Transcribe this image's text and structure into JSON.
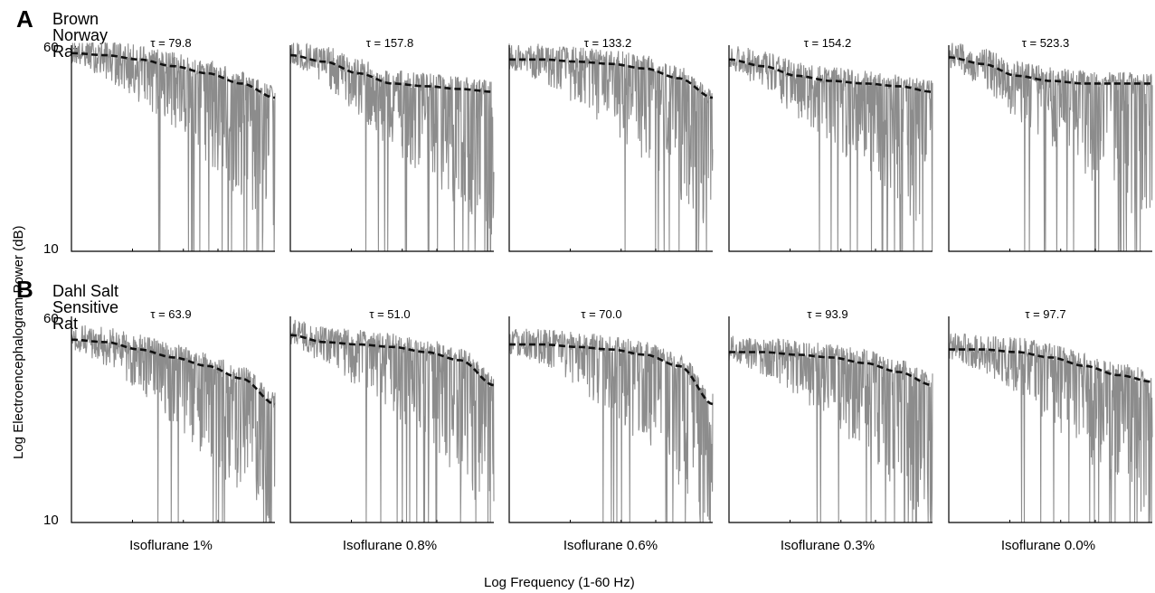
{
  "ylabel": "Log Electroencephalogram Power (dB)",
  "xlabel": "Log Frequency (1-60 Hz)",
  "yticks": {
    "top": "60",
    "bottom": "10"
  },
  "conditions": [
    "Isoflurane 1%",
    "Isoflurane 0.8%",
    "Isoflurane 0.6%",
    "Isoflurane 0.3%",
    "Isoflurane 0.0%"
  ],
  "rows": [
    {
      "letter": "A",
      "title": "Brown Norway Rat",
      "taus": [
        "τ = 79.8",
        "τ = 157.8",
        "τ = 133.2",
        "τ = 154.2",
        "τ = 523.3"
      ]
    },
    {
      "letter": "B",
      "title": "Dahl Salt Sensitive Rat",
      "taus": [
        "τ = 63.9",
        "τ = 51.0",
        "τ = 70.0",
        "τ = 93.9",
        "τ = 97.7"
      ]
    }
  ],
  "colors": {
    "spectrum": "#8c8c8c",
    "fit": "#111111",
    "axis": "#000000"
  },
  "chart_data": {
    "type": "line",
    "description_series": [
      "EEG power spectrum (gray)",
      "fitted curve (black dashed)"
    ],
    "x_range_hz": [
      1,
      60
    ],
    "ylim_db": [
      10,
      60
    ],
    "y_scale": "log",
    "x_scale": "log",
    "panels": [
      {
        "row": "A",
        "condition": "Isoflurane 1%",
        "tau": 79.8,
        "fit_db": [
          56,
          55,
          53,
          50,
          47,
          43,
          38
        ]
      },
      {
        "row": "A",
        "condition": "Isoflurane 0.8%",
        "tau": 157.8,
        "fit_db": [
          55,
          52,
          47,
          43,
          42,
          41,
          40
        ]
      },
      {
        "row": "A",
        "condition": "Isoflurane 0.6%",
        "tau": 133.2,
        "fit_db": [
          53,
          53,
          52,
          51,
          49,
          45,
          38
        ]
      },
      {
        "row": "A",
        "condition": "Isoflurane 0.3%",
        "tau": 154.2,
        "fit_db": [
          53,
          50,
          46,
          44,
          43,
          42,
          40
        ]
      },
      {
        "row": "A",
        "condition": "Isoflurane 0.0%",
        "tau": 523.3,
        "fit_db": [
          54,
          51,
          46,
          44,
          43,
          43,
          43
        ]
      },
      {
        "row": "B",
        "condition": "Isoflurane 1%",
        "tau": 63.9,
        "fit_db": [
          49,
          48,
          45,
          42,
          39,
          35,
          28
        ]
      },
      {
        "row": "B",
        "condition": "Isoflurane 0.8%",
        "tau": 51.0,
        "fit_db": [
          51,
          48,
          47,
          46,
          44,
          41,
          33
        ]
      },
      {
        "row": "B",
        "condition": "Isoflurane 0.6%",
        "tau": 70.0,
        "fit_db": [
          47,
          47,
          46,
          45,
          43,
          39,
          28
        ]
      },
      {
        "row": "B",
        "condition": "Isoflurane 0.3%",
        "tau": 93.9,
        "fit_db": [
          44,
          44,
          43,
          42,
          40,
          37,
          33
        ]
      },
      {
        "row": "B",
        "condition": "Isoflurane 0.0%",
        "tau": 97.7,
        "fit_db": [
          45,
          45,
          44,
          42,
          39,
          36,
          34
        ]
      }
    ]
  }
}
